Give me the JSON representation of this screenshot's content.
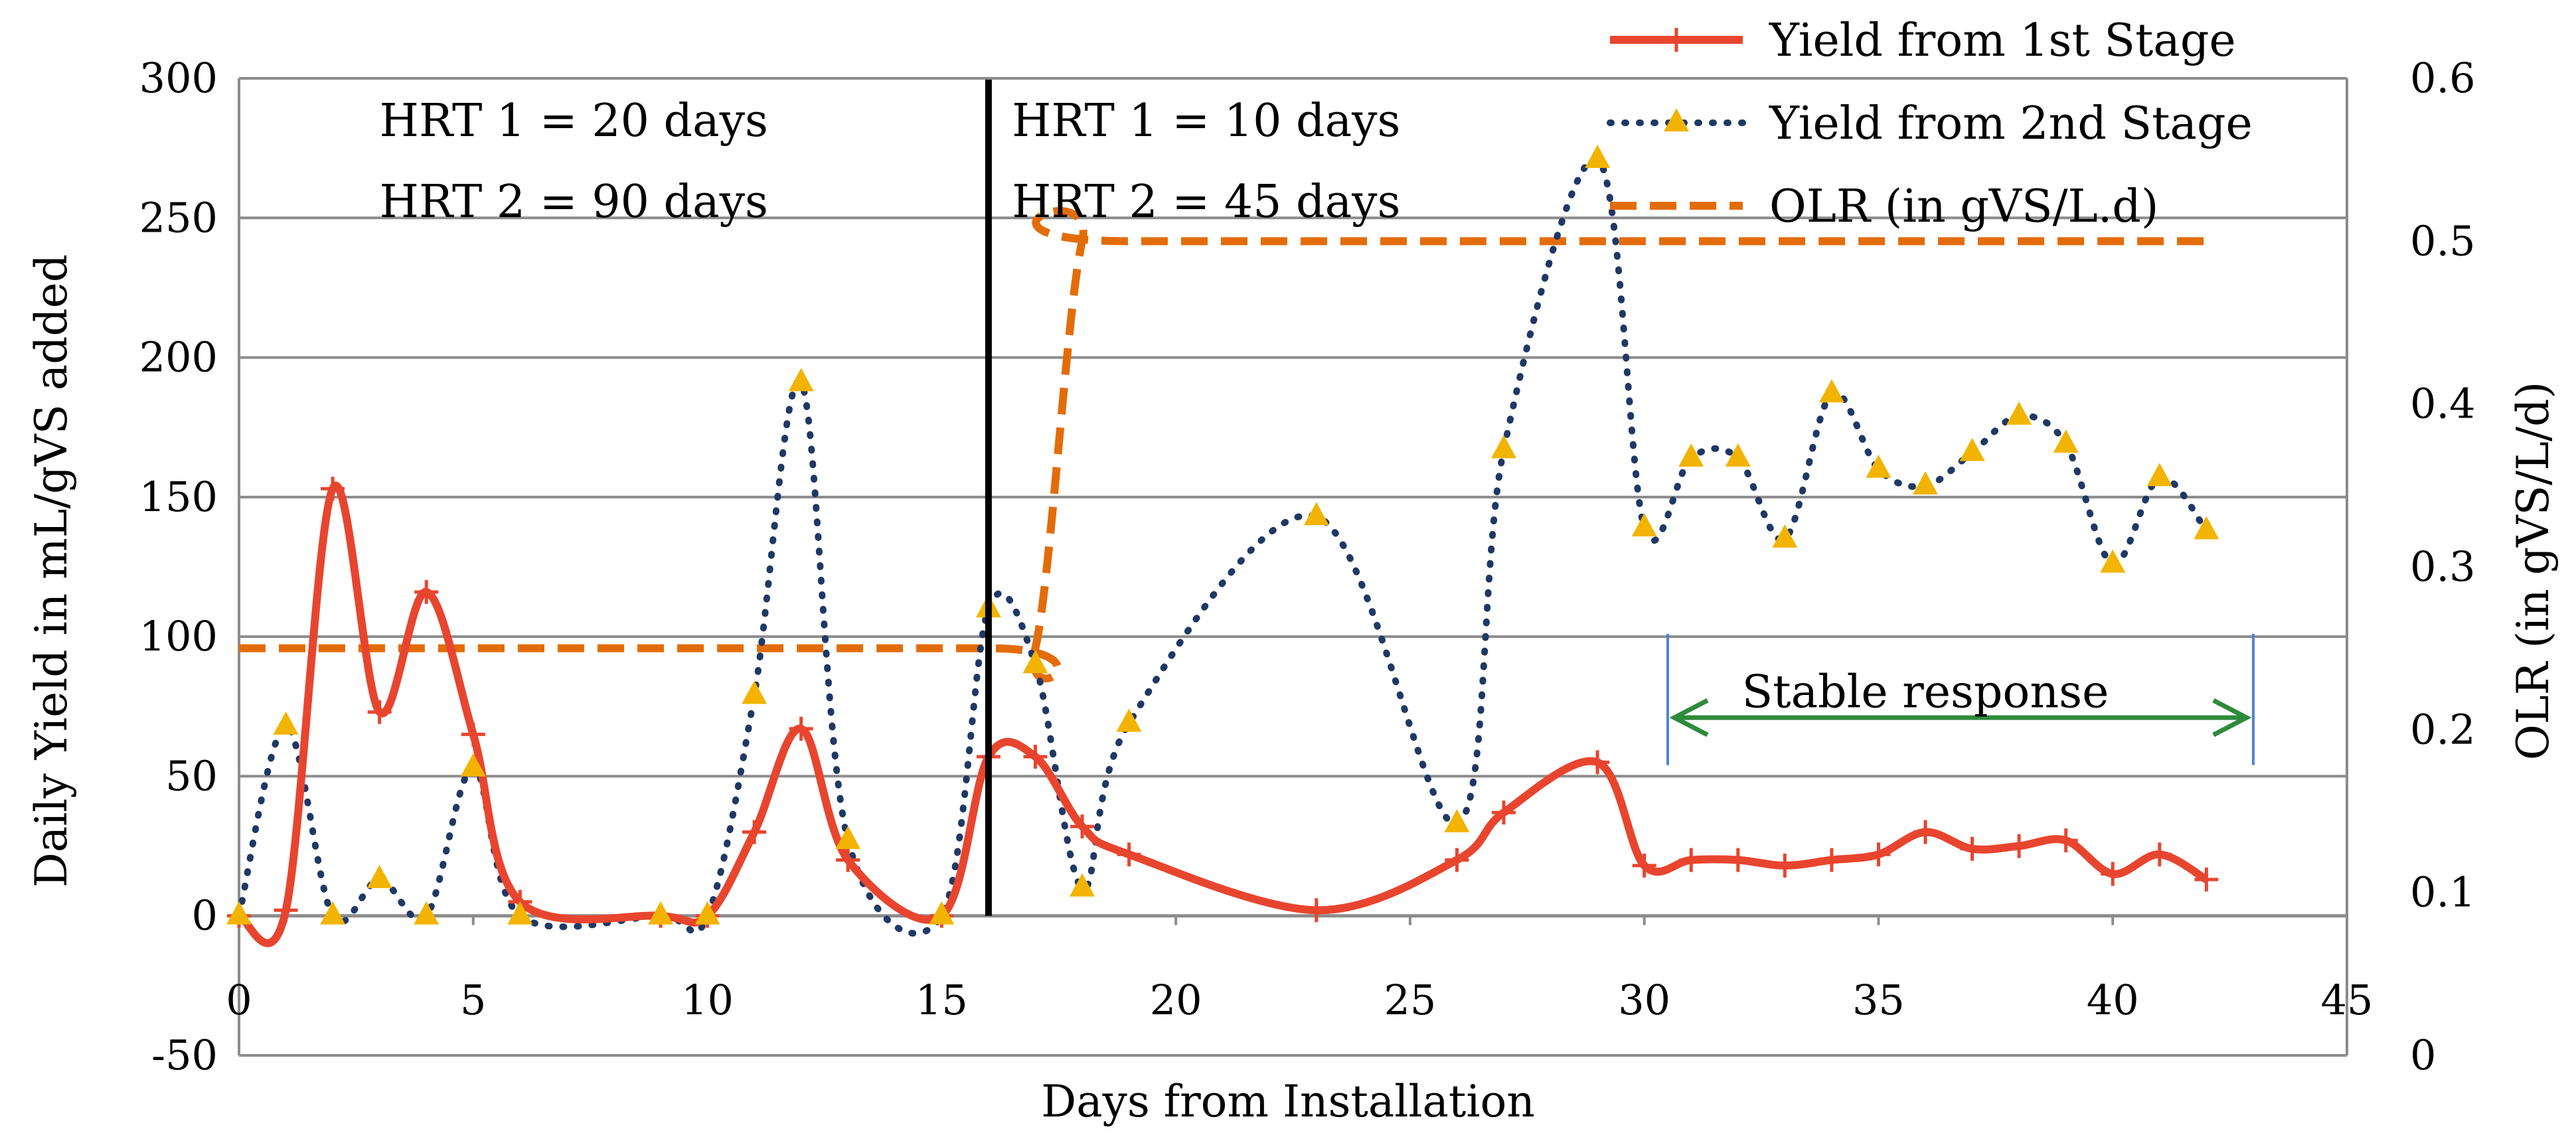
{
  "chart_data": {
    "type": "line",
    "xlabel": "Days from Installation",
    "ylabel": "Daily Yield in mL/gVS added",
    "y2label": "OLR (in gVS/L/d)",
    "xlim": [
      0,
      45
    ],
    "ylim": [
      -50,
      300
    ],
    "y2lim": [
      0,
      0.6
    ],
    "xticks": [
      0,
      5,
      10,
      15,
      20,
      25,
      30,
      35,
      40,
      45
    ],
    "yticks": [
      -50,
      0,
      50,
      100,
      150,
      200,
      250,
      300
    ],
    "y2ticks": [
      "0",
      "0.1",
      "0.2",
      "0.3",
      "0.4",
      "0.5",
      "0.6"
    ],
    "grid": "horizontal",
    "legend_position": "top-right",
    "series": [
      {
        "name": "Yield from 1st Stage",
        "axis": "left",
        "color": "#e8452f",
        "style": "solid",
        "marker": "plus",
        "x": [
          0,
          1,
          2,
          3,
          4,
          5,
          6,
          9,
          10,
          11,
          12,
          13,
          15,
          16,
          17,
          18,
          19,
          23,
          26,
          27,
          29,
          30,
          31,
          32,
          33,
          34,
          35,
          36,
          37,
          38,
          39,
          40,
          41,
          42
        ],
        "y": [
          0,
          2,
          153,
          73,
          116,
          65,
          5,
          0,
          0,
          30,
          67,
          20,
          0,
          57,
          57,
          32,
          22,
          2,
          20,
          37,
          55,
          18,
          20,
          20,
          18,
          20,
          22,
          30,
          24,
          25,
          27,
          15,
          22,
          13
        ]
      },
      {
        "name": "Yield from 2nd Stage",
        "axis": "left",
        "color": "#1f3864",
        "style": "dotted",
        "marker": "triangle",
        "marker_color": "#f2b400",
        "x": [
          0,
          1,
          2,
          3,
          4,
          5,
          6,
          9,
          10,
          11,
          12,
          13,
          15,
          16,
          17,
          18,
          19,
          23,
          26,
          27,
          29,
          30,
          31,
          32,
          33,
          34,
          35,
          36,
          37,
          38,
          39,
          40,
          41,
          42
        ],
        "y": [
          0,
          68,
          0,
          13,
          0,
          53,
          0,
          0,
          0,
          79,
          191,
          27,
          0,
          110,
          90,
          10,
          69,
          143,
          33,
          167,
          271,
          139,
          164,
          164,
          135,
          187,
          160,
          154,
          166,
          179,
          169,
          126,
          157,
          138
        ]
      },
      {
        "name": "OLR (in gVS/L.d)",
        "axis": "right",
        "color": "#e36c09",
        "style": "dashed",
        "marker": "none",
        "x": [
          0,
          16,
          17,
          18,
          19,
          42
        ],
        "y": [
          0.25,
          0.25,
          0.25,
          0.5,
          0.5,
          0.5
        ]
      }
    ],
    "annotations": [
      {
        "text": "HRT 1 = 20 days",
        "x": 3,
        "y": 285
      },
      {
        "text": "HRT 2 = 90 days",
        "x": 3,
        "y": 256
      },
      {
        "text": "HRT 1 = 10 days",
        "x": 16.5,
        "y": 285
      },
      {
        "text": "HRT 2 = 45 days",
        "x": 16.5,
        "y": 256
      },
      {
        "text": "Stable response",
        "x": 36,
        "y": 80
      }
    ],
    "stable_range": [
      30.5,
      43
    ]
  },
  "colors": {
    "stage1": "#e8452f",
    "stage2": "#1f3864",
    "stage2_marker": "#f2b400",
    "olr": "#e36c09",
    "grid": "#8c8c8c",
    "divider": "#000000",
    "bracket_arrow": "#2e8b3a",
    "bracket_edges": "#4f81d1"
  }
}
